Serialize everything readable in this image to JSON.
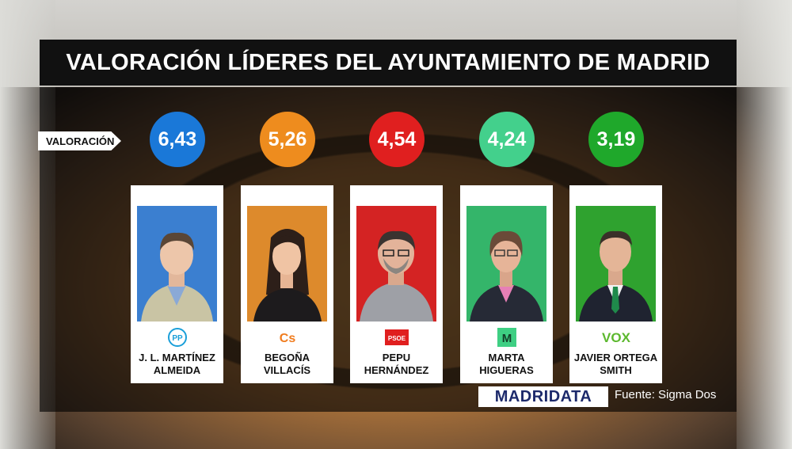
{
  "title": "VALORACIÓN LÍDERES DEL AYUNTAMIENTO DE MADRID",
  "valoracion_label": "VALORACIÓN",
  "chart_data": {
    "type": "bar",
    "title": "VALORACIÓN LÍDERES DEL AYUNTAMIENTO DE MADRID",
    "categories": [
      "J. L. MARTÍNEZ ALMEIDA",
      "BEGOÑA VILLACÍS",
      "PEPU HERNÁNDEZ",
      "MARTA HIGUERAS",
      "JAVIER ORTEGA SMITH"
    ],
    "values": [
      6.43,
      5.26,
      4.54,
      4.24,
      3.19
    ]
  },
  "leaders": [
    {
      "score": "6,43",
      "name_line1": "J. L. MARTÍNEZ",
      "name_line2": "ALMEIDA",
      "party_logo": "PP",
      "color": "#1a78d8",
      "photo_bg": "#3b7fd0"
    },
    {
      "score": "5,26",
      "name_line1": "BEGOÑA",
      "name_line2": "VILLACÍS",
      "party_logo": "Cs",
      "color": "#ee8c1e",
      "photo_bg": "#dd8a2c"
    },
    {
      "score": "4,54",
      "name_line1": "PEPU",
      "name_line2": "HERNÁNDEZ",
      "party_logo": "PSOE",
      "color": "#e01f1f",
      "photo_bg": "#d42323"
    },
    {
      "score": "4,24",
      "name_line1": "MARTA",
      "name_line2": "HIGUERAS",
      "party_logo": "M",
      "color": "#43d08c",
      "photo_bg": "#34b56a"
    },
    {
      "score": "3,19",
      "name_line1": "JAVIER ORTEGA",
      "name_line2": "SMITH",
      "party_logo": "VOX",
      "color": "#1fa82b",
      "photo_bg": "#2fa22f"
    }
  ],
  "brand": "MADRIDATA",
  "source": "Fuente: Sigma Dos"
}
